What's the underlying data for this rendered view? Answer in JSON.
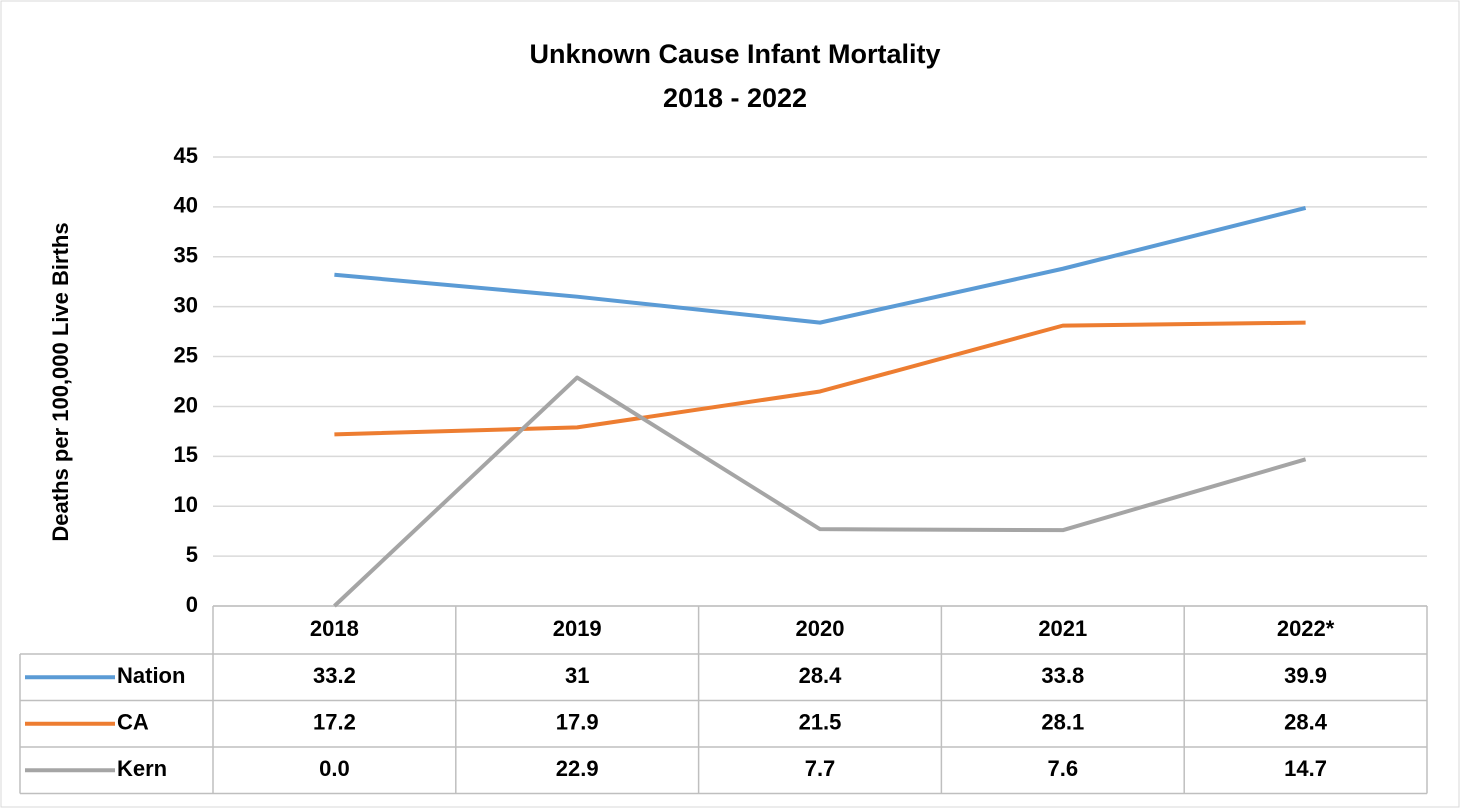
{
  "chart_data": {
    "type": "line",
    "title": "Unknown Cause Infant Mortality",
    "subtitle": "2018 - 2022",
    "y_label": "Deaths per 100,000 Live Births",
    "categories": [
      "2018",
      "2019",
      "2020",
      "2021",
      "2022*"
    ],
    "series": [
      {
        "name": "Nation",
        "color": "#5b9bd5",
        "values": [
          33.2,
          31,
          28.4,
          33.8,
          39.9
        ]
      },
      {
        "name": "CA",
        "color": "#ed7d31",
        "values": [
          17.2,
          17.9,
          21.5,
          28.1,
          28.4
        ]
      },
      {
        "name": "Kern",
        "color": "#a5a5a5",
        "values": [
          0,
          22.9,
          7.7,
          7.6,
          14.7
        ],
        "value_labels": [
          "0.0",
          "22.9",
          "7.7",
          "7.6",
          "14.7"
        ]
      }
    ],
    "ylim": [
      0,
      45
    ],
    "yticks": [
      0,
      5,
      10,
      15,
      20,
      25,
      30,
      35,
      40,
      45
    ],
    "grid": true
  }
}
